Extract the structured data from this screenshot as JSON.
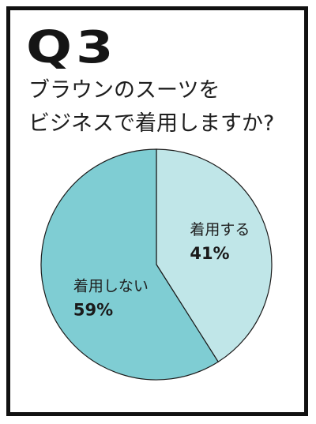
{
  "header": {
    "qnum": "Q3",
    "question_line1": "ブラウンのスーツを",
    "question_line2": "ビジネスで着用しますか?"
  },
  "chart_data": {
    "type": "pie",
    "title": "",
    "slices": [
      {
        "label": "着用する",
        "value": 41,
        "value_label": "41%",
        "color": "#c0e6e8"
      },
      {
        "label": "着用しない",
        "value": 59,
        "value_label": "59%",
        "color": "#7fcdd3"
      }
    ],
    "stroke_color": "#1a1a1a",
    "legend": "none"
  }
}
